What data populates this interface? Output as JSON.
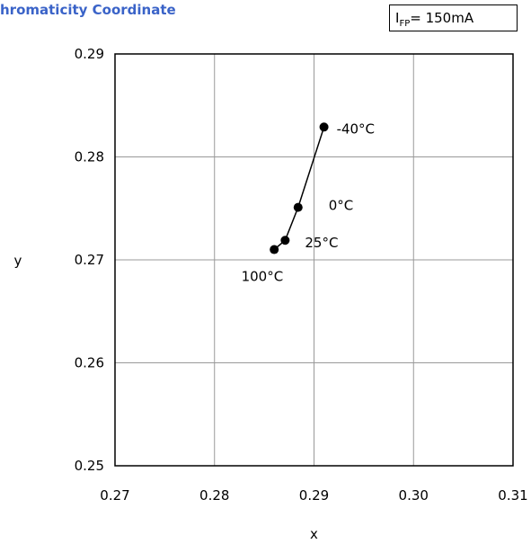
{
  "title": "hromaticity Coordinate",
  "condition": {
    "symbol": "I",
    "subscript": "FP",
    "value": "= 150mA"
  },
  "chart_data": {
    "type": "line",
    "title": "hromaticity Coordinate",
    "xlabel": "x",
    "ylabel": "y",
    "xlim": [
      0.27,
      0.31
    ],
    "ylim": [
      0.25,
      0.29
    ],
    "xticks": [
      "0.27",
      "0.28",
      "0.29",
      "0.30",
      "0.31"
    ],
    "yticks": [
      "0.25",
      "0.26",
      "0.27",
      "0.28",
      "0.29"
    ],
    "grid": true,
    "series": [
      {
        "points": [
          {
            "x": 0.291,
            "y": 0.2829,
            "label": "-40°C"
          },
          {
            "x": 0.2884,
            "y": 0.2751,
            "label": "0°C"
          },
          {
            "x": 0.2871,
            "y": 0.2719,
            "label": "25°C"
          },
          {
            "x": 0.286,
            "y": 0.271,
            "label": "100°C"
          }
        ]
      }
    ]
  }
}
